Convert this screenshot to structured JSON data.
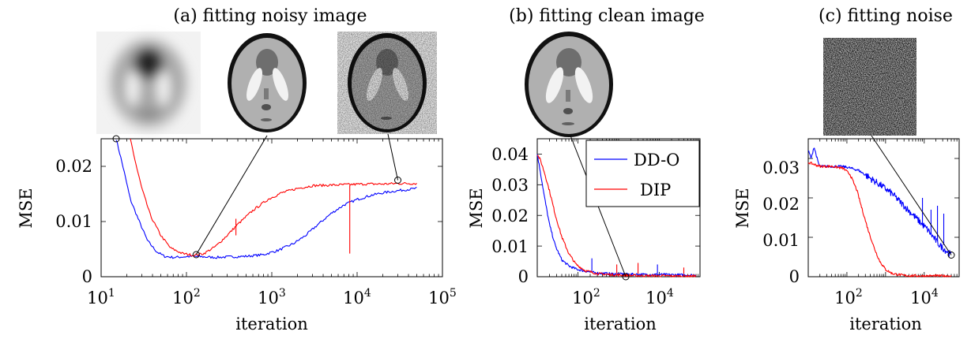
{
  "colors": {
    "dd_o": "#0000ff",
    "dip": "#ff0000",
    "axis": "#000000"
  },
  "chart_data": [
    {
      "type": "line",
      "title": "(a) fitting noisy image",
      "xlabel": "iteration",
      "ylabel": "MSE",
      "xscale": "log",
      "xlim": [
        10,
        100000
      ],
      "ylim": [
        0,
        0.025
      ],
      "xticks": [
        "10^1",
        "10^2",
        "10^3",
        "10^4",
        "10^5"
      ],
      "yticks": [
        "0",
        "0.01",
        "0.02"
      ],
      "grid": false,
      "thumbnails": [
        "blurry-phantom",
        "clean-phantom",
        "noisy-phantom"
      ],
      "markers": [
        {
          "x": 15,
          "y": 0.025
        },
        {
          "x": 130,
          "y": 0.004
        },
        {
          "x": 30000,
          "y": 0.0175
        }
      ],
      "series": [
        {
          "color": "blue",
          "x": [
            15,
            18,
            22,
            28,
            35,
            45,
            55,
            70,
            90,
            120,
            160,
            220,
            320,
            500,
            800,
            1200,
            1800,
            2500,
            3500,
            5000,
            7000,
            10000,
            15000,
            20000,
            30000,
            50000
          ],
          "y": [
            0.025,
            0.02,
            0.014,
            0.01,
            0.0065,
            0.0045,
            0.0037,
            0.0035,
            0.0036,
            0.0037,
            0.0036,
            0.0035,
            0.0036,
            0.0037,
            0.004,
            0.0048,
            0.006,
            0.0075,
            0.0095,
            0.0115,
            0.013,
            0.014,
            0.0148,
            0.0152,
            0.0156,
            0.016
          ]
        },
        {
          "color": "red",
          "x": [
            22,
            25,
            30,
            38,
            50,
            65,
            90,
            120,
            160,
            220,
            300,
            400,
            600,
            900,
            1300,
            2000,
            3000,
            5000,
            8000,
            12000,
            20000,
            30000,
            50000
          ],
          "y": [
            0.025,
            0.021,
            0.016,
            0.011,
            0.0075,
            0.0052,
            0.0042,
            0.0039,
            0.0042,
            0.0055,
            0.0075,
            0.0095,
            0.012,
            0.014,
            0.0152,
            0.016,
            0.0165,
            0.0166,
            0.0167,
            0.0168,
            0.0168,
            0.0169,
            0.0169
          ]
        }
      ]
    },
    {
      "type": "line",
      "title": "(b) fitting clean image",
      "xlabel": "iteration",
      "ylabel": "MSE",
      "xscale": "log",
      "xlim": [
        10,
        100000
      ],
      "ylim": [
        0,
        0.045
      ],
      "xticks": [
        "10^2",
        "10^4"
      ],
      "yticks": [
        "0",
        "0.01",
        "0.02",
        "0.03",
        "0.04"
      ],
      "grid": false,
      "legend": {
        "position": "top-right",
        "entries": [
          "DD-O",
          "DIP"
        ]
      },
      "thumbnails": [
        "clean-phantom"
      ],
      "markers": [
        {
          "x": 1500,
          "y": 0.0
        }
      ],
      "series": [
        {
          "name": "DD-O",
          "color": "blue",
          "x": [
            10,
            12,
            15,
            20,
            28,
            40,
            60,
            90,
            150,
            300,
            800,
            2000,
            5000,
            10000,
            30000,
            80000
          ],
          "y": [
            0.04,
            0.034,
            0.026,
            0.017,
            0.01,
            0.0055,
            0.0035,
            0.0025,
            0.0018,
            0.0012,
            0.0009,
            0.0008,
            0.0007,
            0.0007,
            0.0006,
            0.0005
          ]
        },
        {
          "name": "DIP",
          "color": "red",
          "x": [
            10,
            12,
            15,
            20,
            28,
            40,
            60,
            90,
            150,
            300,
            800,
            2000,
            5000,
            10000,
            30000,
            80000
          ],
          "y": [
            0.04,
            0.038,
            0.034,
            0.028,
            0.02,
            0.013,
            0.0075,
            0.004,
            0.002,
            0.001,
            0.0006,
            0.0004,
            0.0003,
            0.0003,
            0.0002,
            0.0002
          ]
        }
      ]
    },
    {
      "type": "line",
      "title": "(c) fitting noise",
      "xlabel": "iteration",
      "ylabel": "MSE",
      "xscale": "log",
      "xlim": [
        10,
        80000
      ],
      "ylim": [
        0,
        0.035
      ],
      "xticks": [
        "10^2",
        "10^4"
      ],
      "yticks": [
        "0",
        "0.01",
        "0.02",
        "0.03"
      ],
      "grid": false,
      "thumbnails": [
        "noise-patch"
      ],
      "markers": [
        {
          "x": 50000,
          "y": 0.0055
        }
      ],
      "series": [
        {
          "color": "blue",
          "x": [
            10,
            12,
            14,
            16,
            18,
            20,
            25,
            30,
            40,
            60,
            100,
            200,
            400,
            800,
            1500,
            3000,
            6000,
            12000,
            25000,
            50000
          ],
          "y": [
            0.032,
            0.03,
            0.033,
            0.031,
            0.029,
            0.028,
            0.028,
            0.028,
            0.028,
            0.028,
            0.0278,
            0.027,
            0.025,
            0.023,
            0.021,
            0.018,
            0.015,
            0.012,
            0.008,
            0.0055
          ]
        },
        {
          "color": "red",
          "x": [
            10,
            20,
            40,
            80,
            120,
            180,
            250,
            350,
            500,
            700,
            1000,
            1500,
            3000,
            8000,
            20000,
            50000
          ],
          "y": [
            0.029,
            0.028,
            0.028,
            0.0275,
            0.026,
            0.022,
            0.017,
            0.012,
            0.0075,
            0.004,
            0.0018,
            0.0008,
            0.0003,
            0.0002,
            0.0002,
            0.0002
          ]
        }
      ]
    }
  ]
}
